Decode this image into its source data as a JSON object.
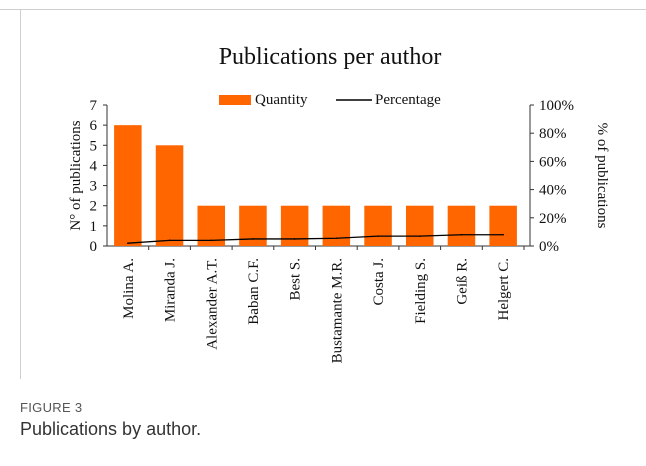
{
  "figure": {
    "label": "FIGURE 3",
    "caption": "Publications by author."
  },
  "chart_data": {
    "type": "bar",
    "title": "Publications per author",
    "categories": [
      "Molina A.",
      "Miranda J.",
      "Alexander A.T.",
      "Baban C.F.",
      "Best S.",
      "Bustamante M.R.",
      "Costa J.",
      "Fielding S.",
      "Geiß R.",
      "Helgert C."
    ],
    "series": [
      {
        "name": "Quantity",
        "type": "bar",
        "axis": "left",
        "color": "#ff6600",
        "values": [
          6,
          5,
          2,
          2,
          2,
          2,
          2,
          2,
          2,
          2
        ]
      },
      {
        "name": "Percentage",
        "type": "line",
        "axis": "right",
        "color": "#000000",
        "values": [
          2,
          4,
          4,
          5,
          5,
          5.5,
          7,
          7,
          8,
          8
        ]
      }
    ],
    "ylabel": "N° of publications",
    "ylabel_right": "% of publications",
    "ylim": [
      0,
      7
    ],
    "yticks": [
      "0",
      "1",
      "2",
      "3",
      "4",
      "5",
      "6",
      "7"
    ],
    "ylim_right": [
      0,
      100
    ],
    "yticks_right": [
      "0%",
      "20%",
      "40%",
      "60%",
      "80%",
      "100%"
    ],
    "legend": {
      "placement": "top-center",
      "items": [
        "Quantity",
        "Percentage"
      ]
    },
    "grid": false
  }
}
